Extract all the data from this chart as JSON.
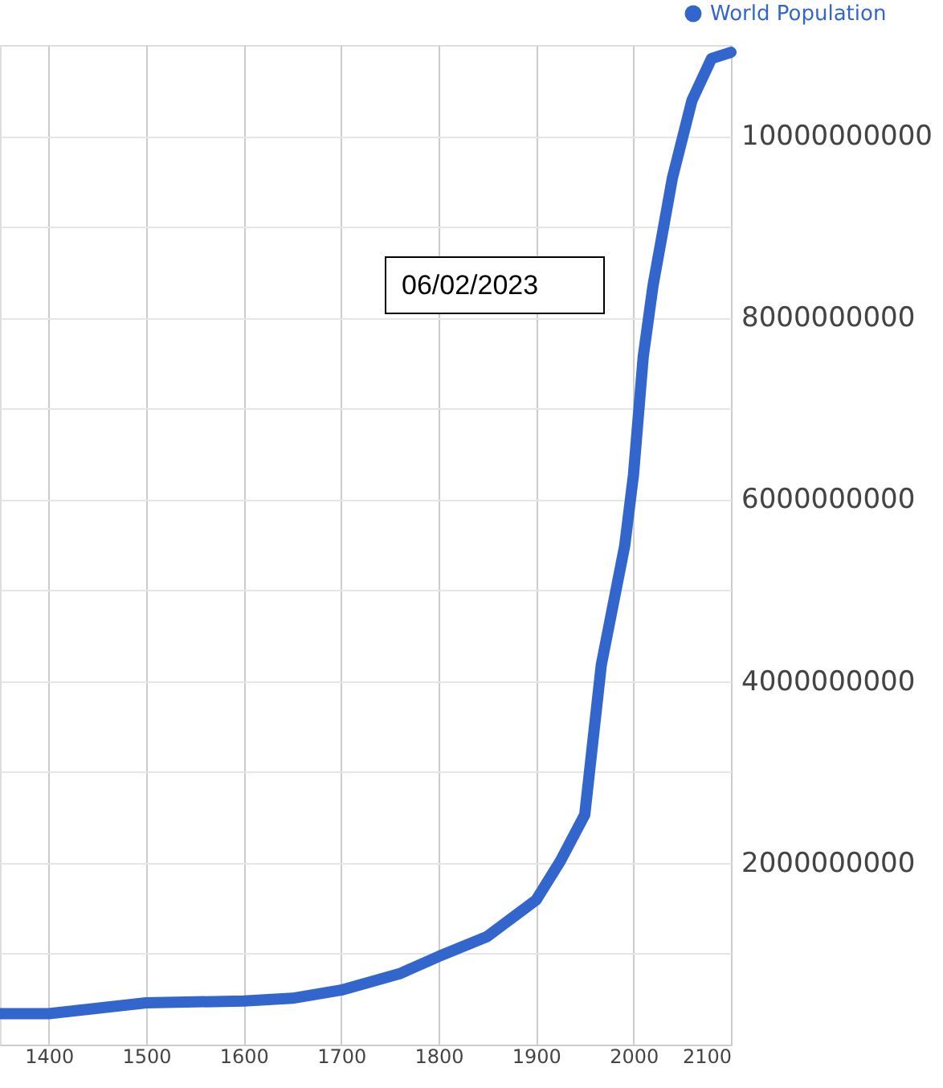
{
  "chart_data": {
    "type": "line",
    "x": [
      1350,
      1400,
      1500,
      1600,
      1650,
      1700,
      1760,
      1800,
      1850,
      1900,
      1925,
      1950,
      1967,
      1991,
      2000,
      2010,
      2020,
      2040,
      2060,
      2080,
      2100
    ],
    "series": [
      {
        "name": "World Population",
        "color": "#3366cc",
        "values": [
          340000000,
          340000000,
          460000000,
          480000000,
          510000000,
          600000000,
          780000000,
          970000000,
          1190000000,
          1590000000,
          2020000000,
          2530000000,
          4180000000,
          5490000000,
          6270000000,
          7570000000,
          8350000000,
          9540000000,
          10390000000,
          10850000000,
          10920000000
        ]
      }
    ],
    "xlim": [
      1350,
      2100
    ],
    "xticks": [
      1400,
      1500,
      1600,
      1700,
      1800,
      1900,
      2000,
      2100
    ],
    "ylim": [
      0,
      11000000000
    ],
    "yticks": [
      {
        "value": 1000000000,
        "label": null
      },
      2000000000,
      {
        "value": 3000000000,
        "label": null
      },
      4000000000,
      {
        "value": 5000000000,
        "label": null
      },
      6000000000,
      {
        "value": 7000000000,
        "label": null
      },
      8000000000,
      {
        "value": 9000000000,
        "label": null
      },
      10000000000
    ],
    "annotations": [
      "06/02/2023"
    ],
    "grid": true,
    "legend": "top right",
    "marker": "none",
    "line_style": "solid"
  }
}
